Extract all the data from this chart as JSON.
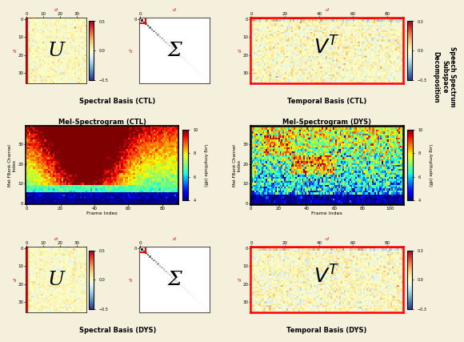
{
  "bg_color": "#f5f0dc",
  "title_fontsize": 6.0,
  "label_fontsize": 4.5,
  "tick_fontsize": 4.0,
  "U_label": "U",
  "Sigma_label": "Σ",
  "spectral_basis_ctl": "Spectral Basis (CTL)",
  "temporal_basis_ctl": "Temporal Basis (CTL)",
  "spectral_basis_dys": "Spectral Basis (DYS)",
  "temporal_basis_dys": "Temporal Basis (DYS)",
  "mel_ctl_title": "Mel-Spectrogram (CTL)",
  "mel_dys_title": "Mel-Spectrogram (DYS)",
  "U_cmap": "RdYlBu_r",
  "VT_cmap": "RdYlBu_r",
  "mel_cmap": "jet",
  "U_clim": [
    -0.5,
    0.5
  ],
  "VT_clim": [
    -0.3,
    0.3
  ],
  "mel_clim": [
    4,
    10
  ],
  "U_rows": 36,
  "U_cols": 36,
  "VT_rows": 36,
  "VT_ctl_cols": 90,
  "VT_dys_cols": 90,
  "mel_rows": 40,
  "mel_ctl_cols": 90,
  "mel_dys_cols": 110,
  "ylabel_mel": "Mel-FBank Channel\nIndex",
  "xlabel_mel": "Frame Index",
  "ylabel_log": "Log Amplitude (dB)",
  "right_label": "Speech Spectrum\nSubspace\nDecomposition",
  "seed_ctl": 42,
  "seed_dys": 77
}
